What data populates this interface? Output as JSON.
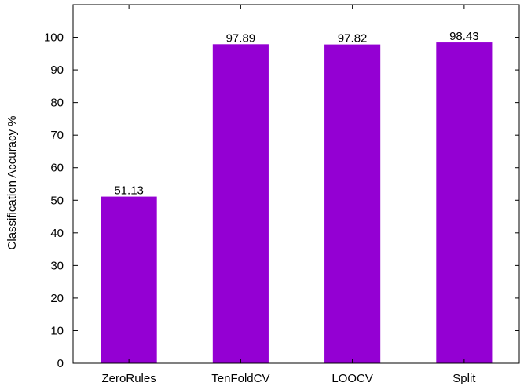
{
  "chart_data": {
    "type": "bar",
    "categories": [
      "ZeroRules",
      "TenFoldCV",
      "LOOCV",
      "Split"
    ],
    "values": [
      51.13,
      97.89,
      97.82,
      98.43
    ],
    "value_labels": [
      "51.13",
      "97.89",
      "97.82",
      "98.43"
    ],
    "title": "",
    "xlabel": "",
    "ylabel": "Classification Accuracy %",
    "ylim": [
      0,
      110
    ],
    "yticks": [
      0,
      10,
      20,
      30,
      40,
      50,
      60,
      70,
      80,
      90,
      100
    ],
    "grid": false,
    "legend": "none",
    "bar_color": "#9400d3",
    "axis_color": "#000000"
  }
}
